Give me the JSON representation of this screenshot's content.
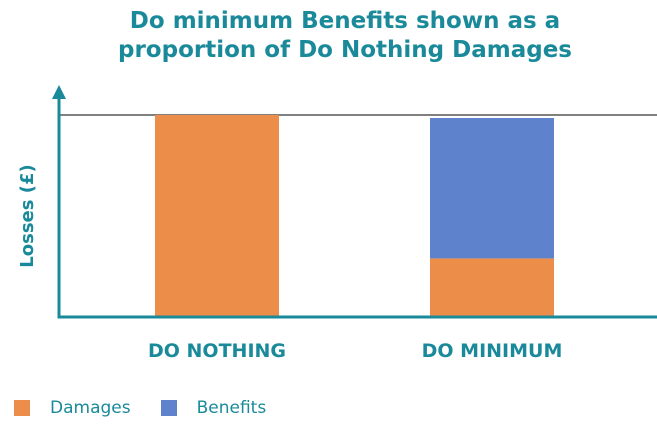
{
  "title_lines": [
    "Do minimum Benefits shown as a",
    "proportion of Do Nothing Damages"
  ],
  "colors": {
    "damages": "#ec8e4a",
    "benefits": "#5e83cc",
    "axis": "#1a8a9a",
    "reference_line": "#808080"
  },
  "legend": [
    {
      "label": "Damages",
      "color_key": "damages"
    },
    {
      "label": "Benefits",
      "color_key": "benefits"
    }
  ],
  "chart_data": {
    "type": "bar",
    "stacked": true,
    "title": "Do minimum Benefits shown as a proportion of Do Nothing Damages",
    "xlabel": "",
    "ylabel": "Losses (£)",
    "categories": [
      "DO NOTHING",
      "DO MINIMUM"
    ],
    "series": [
      {
        "name": "Damages",
        "values": [
          100,
          29
        ]
      },
      {
        "name": "Benefits",
        "values": [
          0,
          71
        ]
      }
    ],
    "reference_line": 100,
    "ylim": [
      0,
      100
    ],
    "grid": false,
    "y_ticks_shown": false,
    "legend_position": "bottom-left"
  }
}
